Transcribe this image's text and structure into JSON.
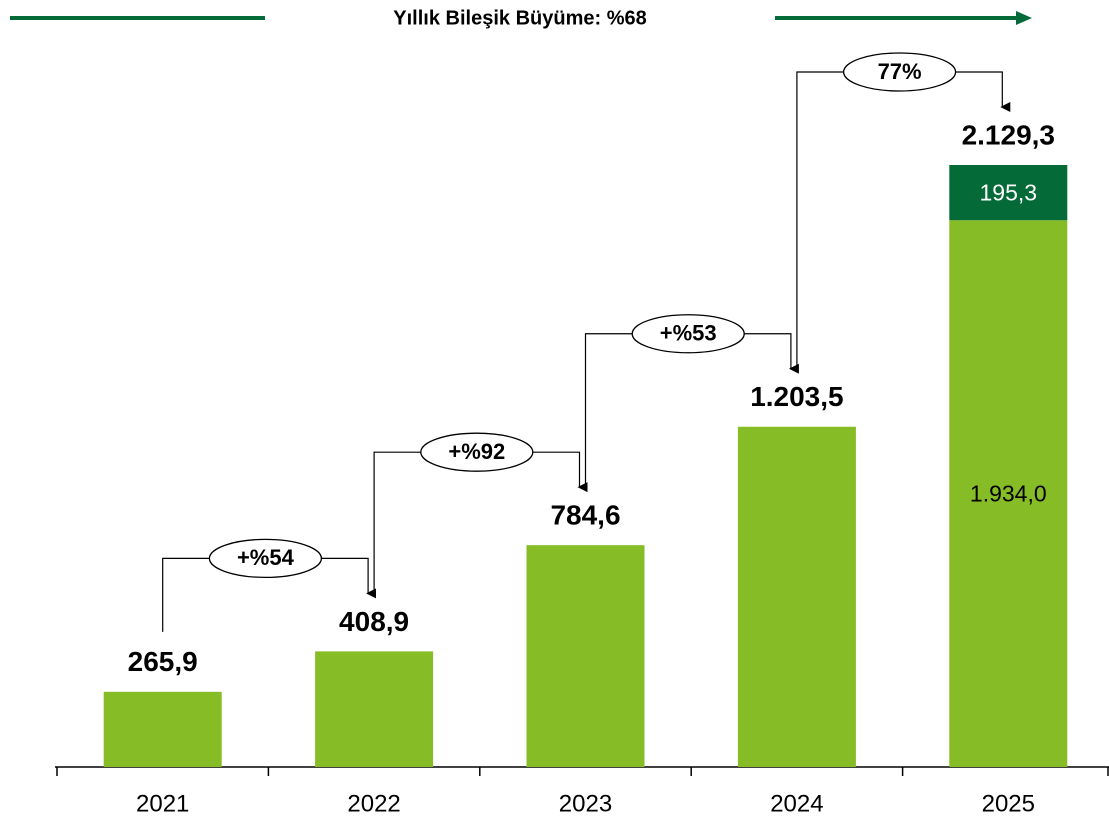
{
  "chart_data": {
    "type": "bar",
    "stacked": true,
    "title": "Yıllık Bileşik Büyüme: %68",
    "categories": [
      "2021",
      "2022",
      "2023",
      "2024",
      "2025"
    ],
    "series": [
      {
        "color": "#86bc25",
        "values": [
          265.9,
          408.9,
          784.6,
          1203.5,
          1934.0
        ],
        "value_labels": [
          null,
          null,
          null,
          null,
          "1.934,0"
        ]
      },
      {
        "color": "#046a38",
        "values": [
          null,
          null,
          null,
          null,
          195.3
        ],
        "value_labels": [
          null,
          null,
          null,
          null,
          "195,3"
        ]
      }
    ],
    "totals": [
      265.9,
      408.9,
      784.6,
      1203.5,
      2129.3
    ],
    "total_labels": [
      "265,9",
      "408,9",
      "784,6",
      "1.203,5",
      "2.129,3"
    ],
    "annotations": [
      "+%54",
      "+%92",
      "+%53",
      "77%"
    ],
    "title_line_color": "#046a38"
  }
}
